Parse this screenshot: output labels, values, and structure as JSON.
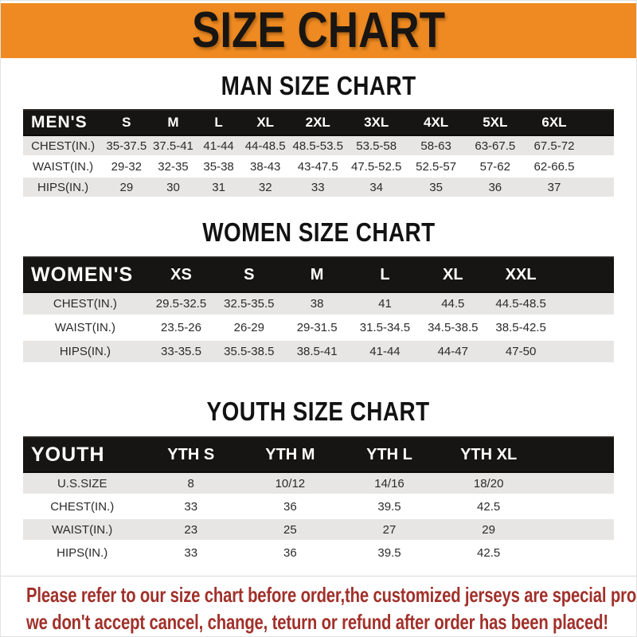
{
  "banner": {
    "title": "SIZE CHART",
    "bg_color": "#ee8a21",
    "text_color": "#181512"
  },
  "sections": [
    {
      "title": "MAN SIZE CHART",
      "header": {
        "label": "MEN'S",
        "columns": [
          "S",
          "M",
          "L",
          "XL",
          "2XL",
          "3XL",
          "4XL",
          "5XL",
          "6XL"
        ]
      },
      "rows": [
        {
          "label": "CHEST(IN.)",
          "values": [
            "35-37.5",
            "37.5-41",
            "41-44",
            "44-48.5",
            "48.5-53.5",
            "53.5-58",
            "58-63",
            "63-67.5",
            "67.5-72"
          ]
        },
        {
          "label": "WAIST(IN.)",
          "values": [
            "29-32",
            "32-35",
            "35-38",
            "38-43",
            "43-47.5",
            "47.5-52.5",
            "52.5-57",
            "57-62",
            "62-66.5"
          ]
        },
        {
          "label": "HIPS(IN.)",
          "values": [
            "29",
            "30",
            "31",
            "32",
            "33",
            "34",
            "35",
            "36",
            "37"
          ]
        }
      ]
    },
    {
      "title": "WOMEN SIZE CHART",
      "header": {
        "label": "WOMEN'S",
        "columns": [
          "XS",
          "S",
          "M",
          "L",
          "XL",
          "XXL"
        ]
      },
      "rows": [
        {
          "label": "CHEST(IN.)",
          "values": [
            "29.5-32.5",
            "32.5-35.5",
            "38",
            "41",
            "44.5",
            "44.5-48.5"
          ]
        },
        {
          "label": "WAIST(IN.)",
          "values": [
            "23.5-26",
            "26-29",
            "29-31.5",
            "31.5-34.5",
            "34.5-38.5",
            "38.5-42.5"
          ]
        },
        {
          "label": "HIPS(IN.)",
          "values": [
            "33-35.5",
            "35.5-38.5",
            "38.5-41",
            "41-44",
            "44-47",
            "47-50"
          ]
        }
      ]
    },
    {
      "title": "YOUTH SIZE CHART",
      "header": {
        "label": "YOUTH",
        "columns": [
          "YTH S",
          "YTH M",
          "YTH L",
          "YTH XL"
        ]
      },
      "rows": [
        {
          "label": "U.S.SIZE",
          "values": [
            "8",
            "10/12",
            "14/16",
            "18/20"
          ]
        },
        {
          "label": "CHEST(IN.)",
          "values": [
            "33",
            "36",
            "39.5",
            "42.5"
          ]
        },
        {
          "label": "WAIST(IN.)",
          "values": [
            "23",
            "25",
            "27",
            "29"
          ]
        },
        {
          "label": "HIPS(IN.)",
          "values": [
            "33",
            "36",
            "39.5",
            "42.5"
          ]
        }
      ]
    }
  ],
  "footer": {
    "line1": "Please refer to our size chart before order,the customized jerseys are special products,",
    "line2": "we don't accept cancel, change, teturn or refund after order has been placed!",
    "text_color": "#a1302a"
  }
}
